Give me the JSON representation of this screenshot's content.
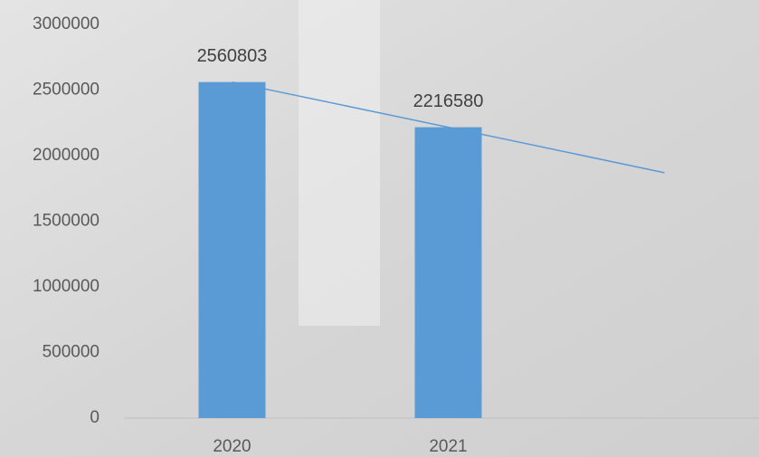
{
  "chart_data": {
    "type": "bar",
    "categories": [
      "2020",
      "2021",
      null
    ],
    "values": [
      2560803,
      2216580,
      null
    ],
    "color": "#5b9bd5",
    "trendline": {
      "values": [
        2560803,
        2216580,
        1870000
      ],
      "color": "#5b9bd5"
    },
    "ylim": [
      0,
      3000000
    ],
    "yticks": [
      0,
      500000,
      1000000,
      1500000,
      2000000,
      2500000,
      3000000
    ],
    "grid": false
  }
}
